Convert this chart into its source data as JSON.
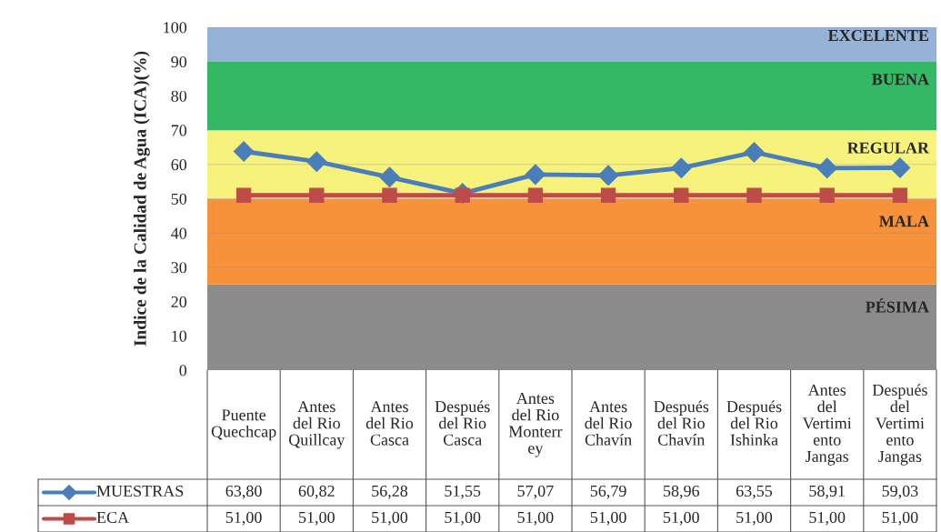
{
  "chart_data": {
    "type": "line",
    "ylabel": "Indice de la Calidad de Agua (ICA)(%)",
    "categories": [
      "Puente Quechcap",
      "Antes del Rio Quillcay",
      "Antes del Rio Casca",
      "Después del Rio Casca",
      "Antes del Rio Monterrey",
      "Antes del Rio Chavín",
      "Después del Rio Chavín",
      "Después del Rio Ishinka",
      "Antes del Vertimiento Jangas",
      "Después del Vertimiento Jangas"
    ],
    "series": [
      {
        "name": "MUESTRAS",
        "color": "#4a7ebb",
        "marker": "diamond",
        "values": [
          63.8,
          60.82,
          56.28,
          51.55,
          57.07,
          56.79,
          58.96,
          63.55,
          58.91,
          59.03
        ],
        "value_labels": [
          "63,80",
          "60,82",
          "56,28",
          "51,55",
          "57,07",
          "56,79",
          "58,96",
          "63,55",
          "58,91",
          "59,03"
        ]
      },
      {
        "name": "ECA",
        "color": "#be4b48",
        "marker": "square",
        "values": [
          51,
          51,
          51,
          51,
          51,
          51,
          51,
          51,
          51,
          51
        ],
        "value_labels": [
          "51,00",
          "51,00",
          "51,00",
          "51,00",
          "51,00",
          "51,00",
          "51,00",
          "51,00",
          "51,00",
          "51,00"
        ]
      }
    ],
    "bands": [
      {
        "axis": "y",
        "from": 0,
        "to": 25,
        "label": "PÉSIMA",
        "color": "#8c8c8c"
      },
      {
        "axis": "y",
        "from": 25,
        "to": 50,
        "label": "MALA",
        "color": "#f7923a"
      },
      {
        "axis": "y",
        "from": 50,
        "to": 70,
        "label": "REGULAR",
        "color": "#f7f27c"
      },
      {
        "axis": "y",
        "from": 70,
        "to": 90,
        "label": "BUENA",
        "color": "#35b863"
      },
      {
        "axis": "y",
        "from": 90,
        "to": 100,
        "label": "EXCELENTE",
        "color": "#95b3d7"
      }
    ],
    "ylim": [
      0,
      100
    ],
    "yticks": [
      0,
      10,
      20,
      30,
      40,
      50,
      60,
      70,
      80,
      90,
      100
    ],
    "grid": "y",
    "legend": "bottom",
    "line_style": "solid"
  }
}
